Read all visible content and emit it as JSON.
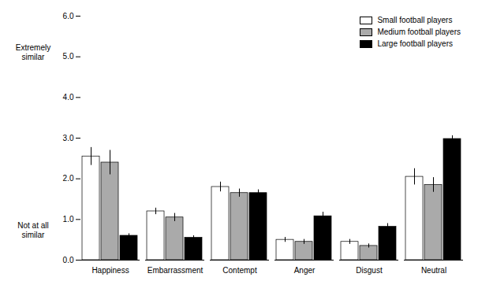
{
  "chart_data": {
    "type": "bar",
    "categories": [
      "Happiness",
      "Embarrassment",
      "Contempt",
      "Anger",
      "Disgust",
      "Neutral"
    ],
    "series": [
      {
        "name": "Small football players",
        "color": "white",
        "values": [
          2.55,
          1.2,
          1.8,
          0.5,
          0.45,
          2.05
        ],
        "errors": [
          0.22,
          0.08,
          0.12,
          0.06,
          0.06,
          0.2
        ]
      },
      {
        "name": "Medium football players",
        "color": "#aaaaaa",
        "values": [
          2.4,
          1.05,
          1.65,
          0.45,
          0.35,
          1.85
        ],
        "errors": [
          0.3,
          0.1,
          0.1,
          0.06,
          0.05,
          0.18
        ]
      },
      {
        "name": "Large football players",
        "color": "black",
        "values": [
          0.6,
          0.55,
          1.65,
          1.08,
          0.82,
          2.98
        ],
        "errors": [
          0.05,
          0.05,
          0.08,
          0.1,
          0.08,
          0.08
        ]
      }
    ],
    "ylim": [
      0,
      6
    ],
    "yticks": [
      0,
      1,
      2,
      3,
      4,
      5,
      6
    ],
    "annotations": [
      "Extremely\nsimilar",
      "Not at all\nsimilar"
    ],
    "legend": "upper right",
    "grid": false
  }
}
